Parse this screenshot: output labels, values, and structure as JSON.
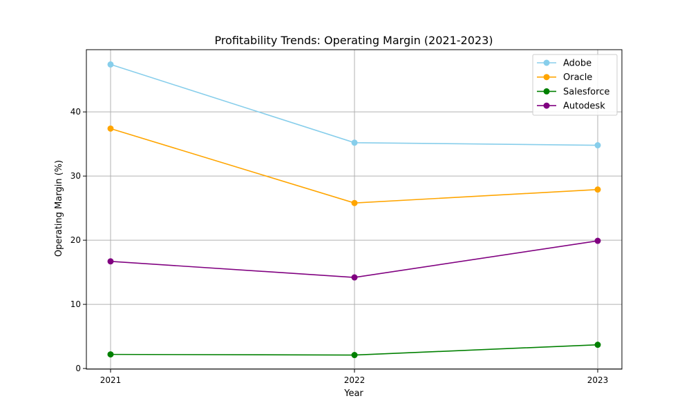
{
  "chart_data": {
    "type": "line",
    "title": "Profitability Trends: Operating Margin (2021-2023)",
    "xlabel": "Year",
    "ylabel": "Operating Margin (%)",
    "categories": [
      "2021",
      "2022",
      "2023"
    ],
    "yticks": [
      0,
      10,
      20,
      30,
      40
    ],
    "ytick_labels": [
      "0",
      "10",
      "20",
      "30",
      "40"
    ],
    "ylim": [
      -0.1,
      49.7
    ],
    "grid": true,
    "legend_position": "top-right",
    "series": [
      {
        "name": "Adobe",
        "color": "#87ceeb",
        "values": [
          47.4,
          35.2,
          34.8
        ]
      },
      {
        "name": "Oracle",
        "color": "#ffa500",
        "values": [
          37.4,
          25.8,
          27.9
        ]
      },
      {
        "name": "Salesforce",
        "color": "#008000",
        "values": [
          2.2,
          2.1,
          3.7
        ]
      },
      {
        "name": "Autodesk",
        "color": "#800080",
        "values": [
          16.7,
          14.2,
          19.9
        ]
      }
    ]
  }
}
